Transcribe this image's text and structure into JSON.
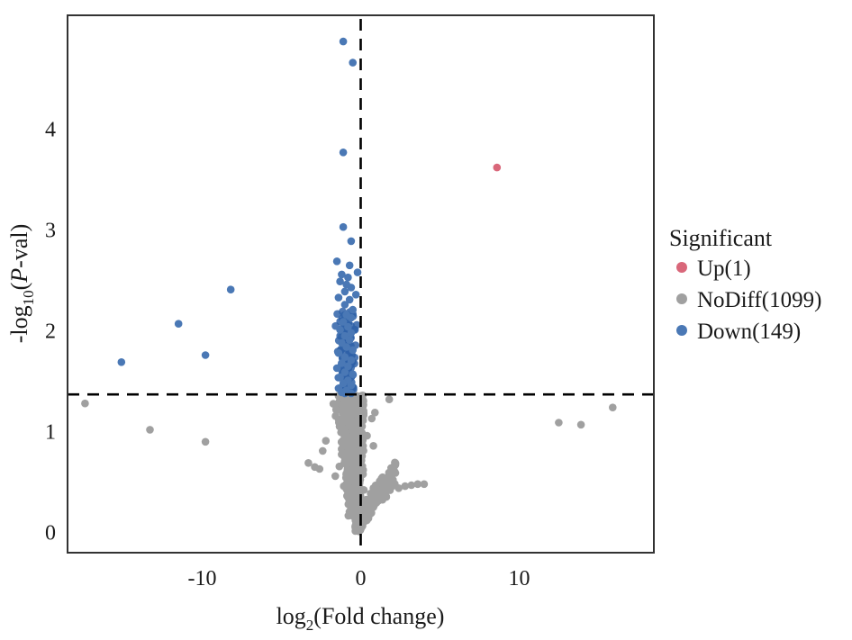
{
  "chart_data": {
    "type": "scatter",
    "title": "",
    "xlabel": {
      "base": "log",
      "sub": "2",
      "rest": "(Fold change)"
    },
    "ylabel": {
      "base": "-log",
      "sub": "10",
      "open": "(",
      "italic": "P",
      "rest": "-val)"
    },
    "xlim": [
      -18.5,
      18.5
    ],
    "ylim": [
      -0.21,
      5.12
    ],
    "x_ticks": [
      -10,
      0,
      10
    ],
    "x_tick_labels": [
      "-10",
      "0",
      "10"
    ],
    "y_ticks": [
      0,
      1,
      2,
      3,
      4
    ],
    "y_tick_labels": [
      "0",
      "1",
      "2",
      "3",
      "4"
    ],
    "grid": false,
    "vline": 0,
    "hline": 1.36,
    "legend": {
      "title": "Significant",
      "placement": "right",
      "entries": [
        {
          "key": "up",
          "label": "Up(1)",
          "color": "#d9677a"
        },
        {
          "key": "nodiff",
          "label": "NoDiff(1099)",
          "color": "#a0a0a0"
        },
        {
          "key": "down",
          "label": "Down(149)",
          "color": "#4a78b5"
        }
      ]
    },
    "colors": {
      "up": "#d9677a",
      "nodiff": "#a0a0a0",
      "down": "#4a78b5",
      "down_dense": "#2f62a8"
    },
    "series": [
      {
        "name": "Up",
        "points": [
          [
            8.6,
            3.61
          ]
        ]
      },
      {
        "name": "Down",
        "points": [
          [
            -1.1,
            4.86
          ],
          [
            -0.5,
            4.65
          ],
          [
            -1.1,
            3.76
          ],
          [
            -8.2,
            2.4
          ],
          [
            -11.5,
            2.06
          ],
          [
            -9.8,
            1.75
          ],
          [
            -15.1,
            1.68
          ],
          [
            -1.1,
            3.02
          ],
          [
            -0.6,
            2.88
          ],
          [
            -1.5,
            2.68
          ],
          [
            -0.7,
            2.64
          ],
          [
            -0.2,
            2.57
          ],
          [
            -1.2,
            2.55
          ],
          [
            -0.8,
            2.52
          ],
          [
            -1.3,
            2.48
          ],
          [
            -0.9,
            2.45
          ],
          [
            -0.6,
            2.42
          ],
          [
            -1.0,
            2.38
          ],
          [
            -0.3,
            2.35
          ],
          [
            -1.4,
            2.32
          ],
          [
            -0.7,
            2.3
          ],
          [
            -1.0,
            2.25
          ],
          [
            -0.5,
            2.2
          ],
          [
            -0.9,
            2.15
          ],
          [
            -0.6,
            2.12
          ],
          [
            -1.1,
            2.08
          ],
          [
            -0.8,
            2.03
          ],
          [
            -1.3,
            2.0
          ],
          [
            -0.6,
            1.97
          ],
          [
            -1.0,
            1.94
          ],
          [
            -0.7,
            1.9
          ],
          [
            -1.2,
            1.87
          ],
          [
            -0.9,
            1.83
          ],
          [
            -0.5,
            1.8
          ],
          [
            -1.4,
            1.77
          ],
          [
            -1.0,
            1.73
          ],
          [
            -0.6,
            1.7
          ],
          [
            -1.2,
            1.67
          ],
          [
            -0.8,
            1.64
          ],
          [
            -1.5,
            1.62
          ],
          [
            -1.0,
            1.58
          ],
          [
            -0.5,
            1.56
          ],
          [
            -1.3,
            1.53
          ],
          [
            -0.8,
            1.5
          ],
          [
            -1.1,
            1.47
          ],
          [
            -0.6,
            1.45
          ],
          [
            -1.4,
            1.42
          ],
          [
            -0.9,
            1.4
          ],
          [
            -1.2,
            1.38
          ],
          [
            -0.6,
            1.37
          ],
          [
            -1.0,
            1.37
          ]
        ]
      },
      {
        "name": "NoDiff",
        "points": [
          [
            -17.4,
            1.27
          ],
          [
            -13.3,
            1.01
          ],
          [
            -9.8,
            0.89
          ],
          [
            12.5,
            1.08
          ],
          [
            13.9,
            1.06
          ],
          [
            15.9,
            1.23
          ],
          [
            1.8,
            1.31
          ],
          [
            0.9,
            1.18
          ],
          [
            0.7,
            1.12
          ],
          [
            0.4,
            0.95
          ],
          [
            0.8,
            0.85
          ],
          [
            -2.2,
            0.9
          ],
          [
            -2.4,
            0.8
          ],
          [
            -3.3,
            0.68
          ],
          [
            -2.9,
            0.64
          ],
          [
            -2.6,
            0.62
          ],
          [
            -1.6,
            0.55
          ],
          [
            1.5,
            0.53
          ],
          [
            2.0,
            0.45
          ],
          [
            2.4,
            0.43
          ],
          [
            2.8,
            0.45
          ],
          [
            3.2,
            0.46
          ],
          [
            3.6,
            0.47
          ],
          [
            4.0,
            0.47
          ],
          [
            1.2,
            0.4
          ],
          [
            0.9,
            0.35
          ]
        ]
      },
      {
        "name": "NoDiff-cluster",
        "cluster": {
          "count": 1073,
          "x_center": -0.45,
          "y_range": [
            0.0,
            1.35
          ]
        }
      },
      {
        "name": "Down-cluster",
        "cluster": {
          "count": 98,
          "x_center": -0.85,
          "y_range": [
            1.37,
            2.2
          ]
        }
      }
    ]
  }
}
